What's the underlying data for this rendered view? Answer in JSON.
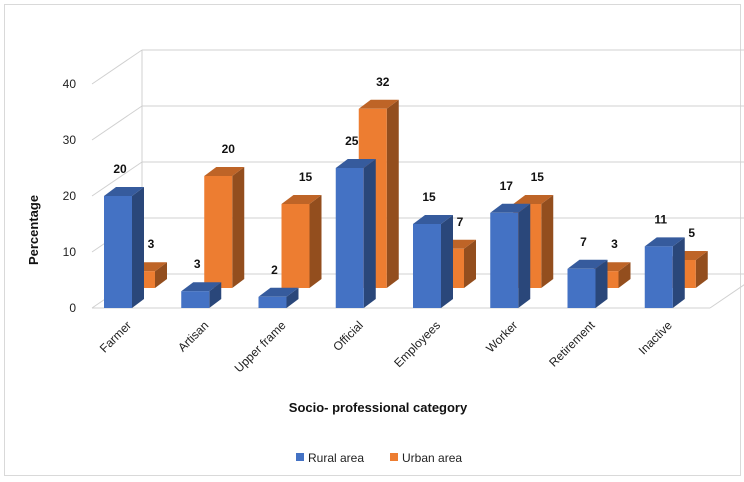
{
  "chart_data": {
    "type": "bar",
    "variant": "3d-clustered",
    "title": "",
    "xlabel": "Socio- professional category",
    "ylabel": "Percentage",
    "categories": [
      "Farmer",
      "Artisan",
      "Upper frame",
      "Official",
      "Employees",
      "Worker",
      "Retirement",
      "Inactive"
    ],
    "series": [
      {
        "name": "Rural area",
        "values": [
          20,
          3,
          2,
          25,
          15,
          17,
          7,
          11
        ],
        "color": "#4472C4"
      },
      {
        "name": "Urban area",
        "values": [
          3,
          20,
          15,
          32,
          7,
          15,
          3,
          5
        ],
        "color": "#ED7D31"
      }
    ],
    "yticks": [
      "0",
      "10",
      "20",
      "30",
      "40"
    ],
    "ylim": [
      0,
      40
    ],
    "grid": true,
    "legend_position": "bottom"
  }
}
